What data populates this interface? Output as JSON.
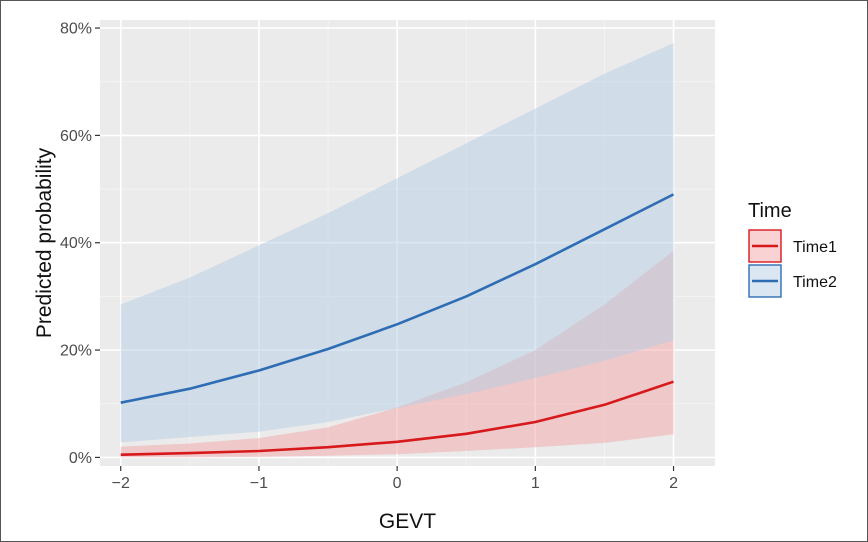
{
  "chart_data": {
    "type": "line",
    "xlabel": "GEVT",
    "ylabel": "Predicted probability",
    "xlim": [
      -2.15,
      2.3
    ],
    "ylim": [
      -0.016,
      0.815
    ],
    "x_ticks": [
      -2,
      -1,
      0,
      1,
      2
    ],
    "x_tick_labels": [
      "−2",
      "−1",
      "0",
      "1",
      "2"
    ],
    "y_ticks": [
      0,
      0.2,
      0.4,
      0.6,
      0.8
    ],
    "y_tick_labels": [
      "0%",
      "20%",
      "40%",
      "60%",
      "80%"
    ],
    "grid": true,
    "legend": {
      "title": "Time",
      "position": "right"
    },
    "x": [
      -2,
      -1.5,
      -1,
      -0.5,
      0,
      0.5,
      1,
      1.5,
      2
    ],
    "series": [
      {
        "name": "Time1",
        "color": "#d7191c",
        "fill": "#f4a6a8",
        "values": [
          0.005,
          0.008,
          0.012,
          0.019,
          0.029,
          0.044,
          0.066,
          0.098,
          0.141
        ],
        "lower": [
          0.0,
          0.0,
          0.001,
          0.003,
          0.006,
          0.012,
          0.019,
          0.027,
          0.043
        ],
        "upper": [
          0.02,
          0.026,
          0.036,
          0.056,
          0.093,
          0.14,
          0.2,
          0.285,
          0.385
        ]
      },
      {
        "name": "Time2",
        "color": "#2e6db4",
        "fill": "#b6cde4",
        "values": [
          0.102,
          0.128,
          0.162,
          0.202,
          0.248,
          0.3,
          0.36,
          0.425,
          0.49
        ],
        "lower": [
          0.028,
          0.038,
          0.048,
          0.066,
          0.092,
          0.118,
          0.148,
          0.18,
          0.218
        ],
        "upper": [
          0.285,
          0.335,
          0.395,
          0.455,
          0.52,
          0.585,
          0.65,
          0.715,
          0.772
        ]
      }
    ]
  }
}
